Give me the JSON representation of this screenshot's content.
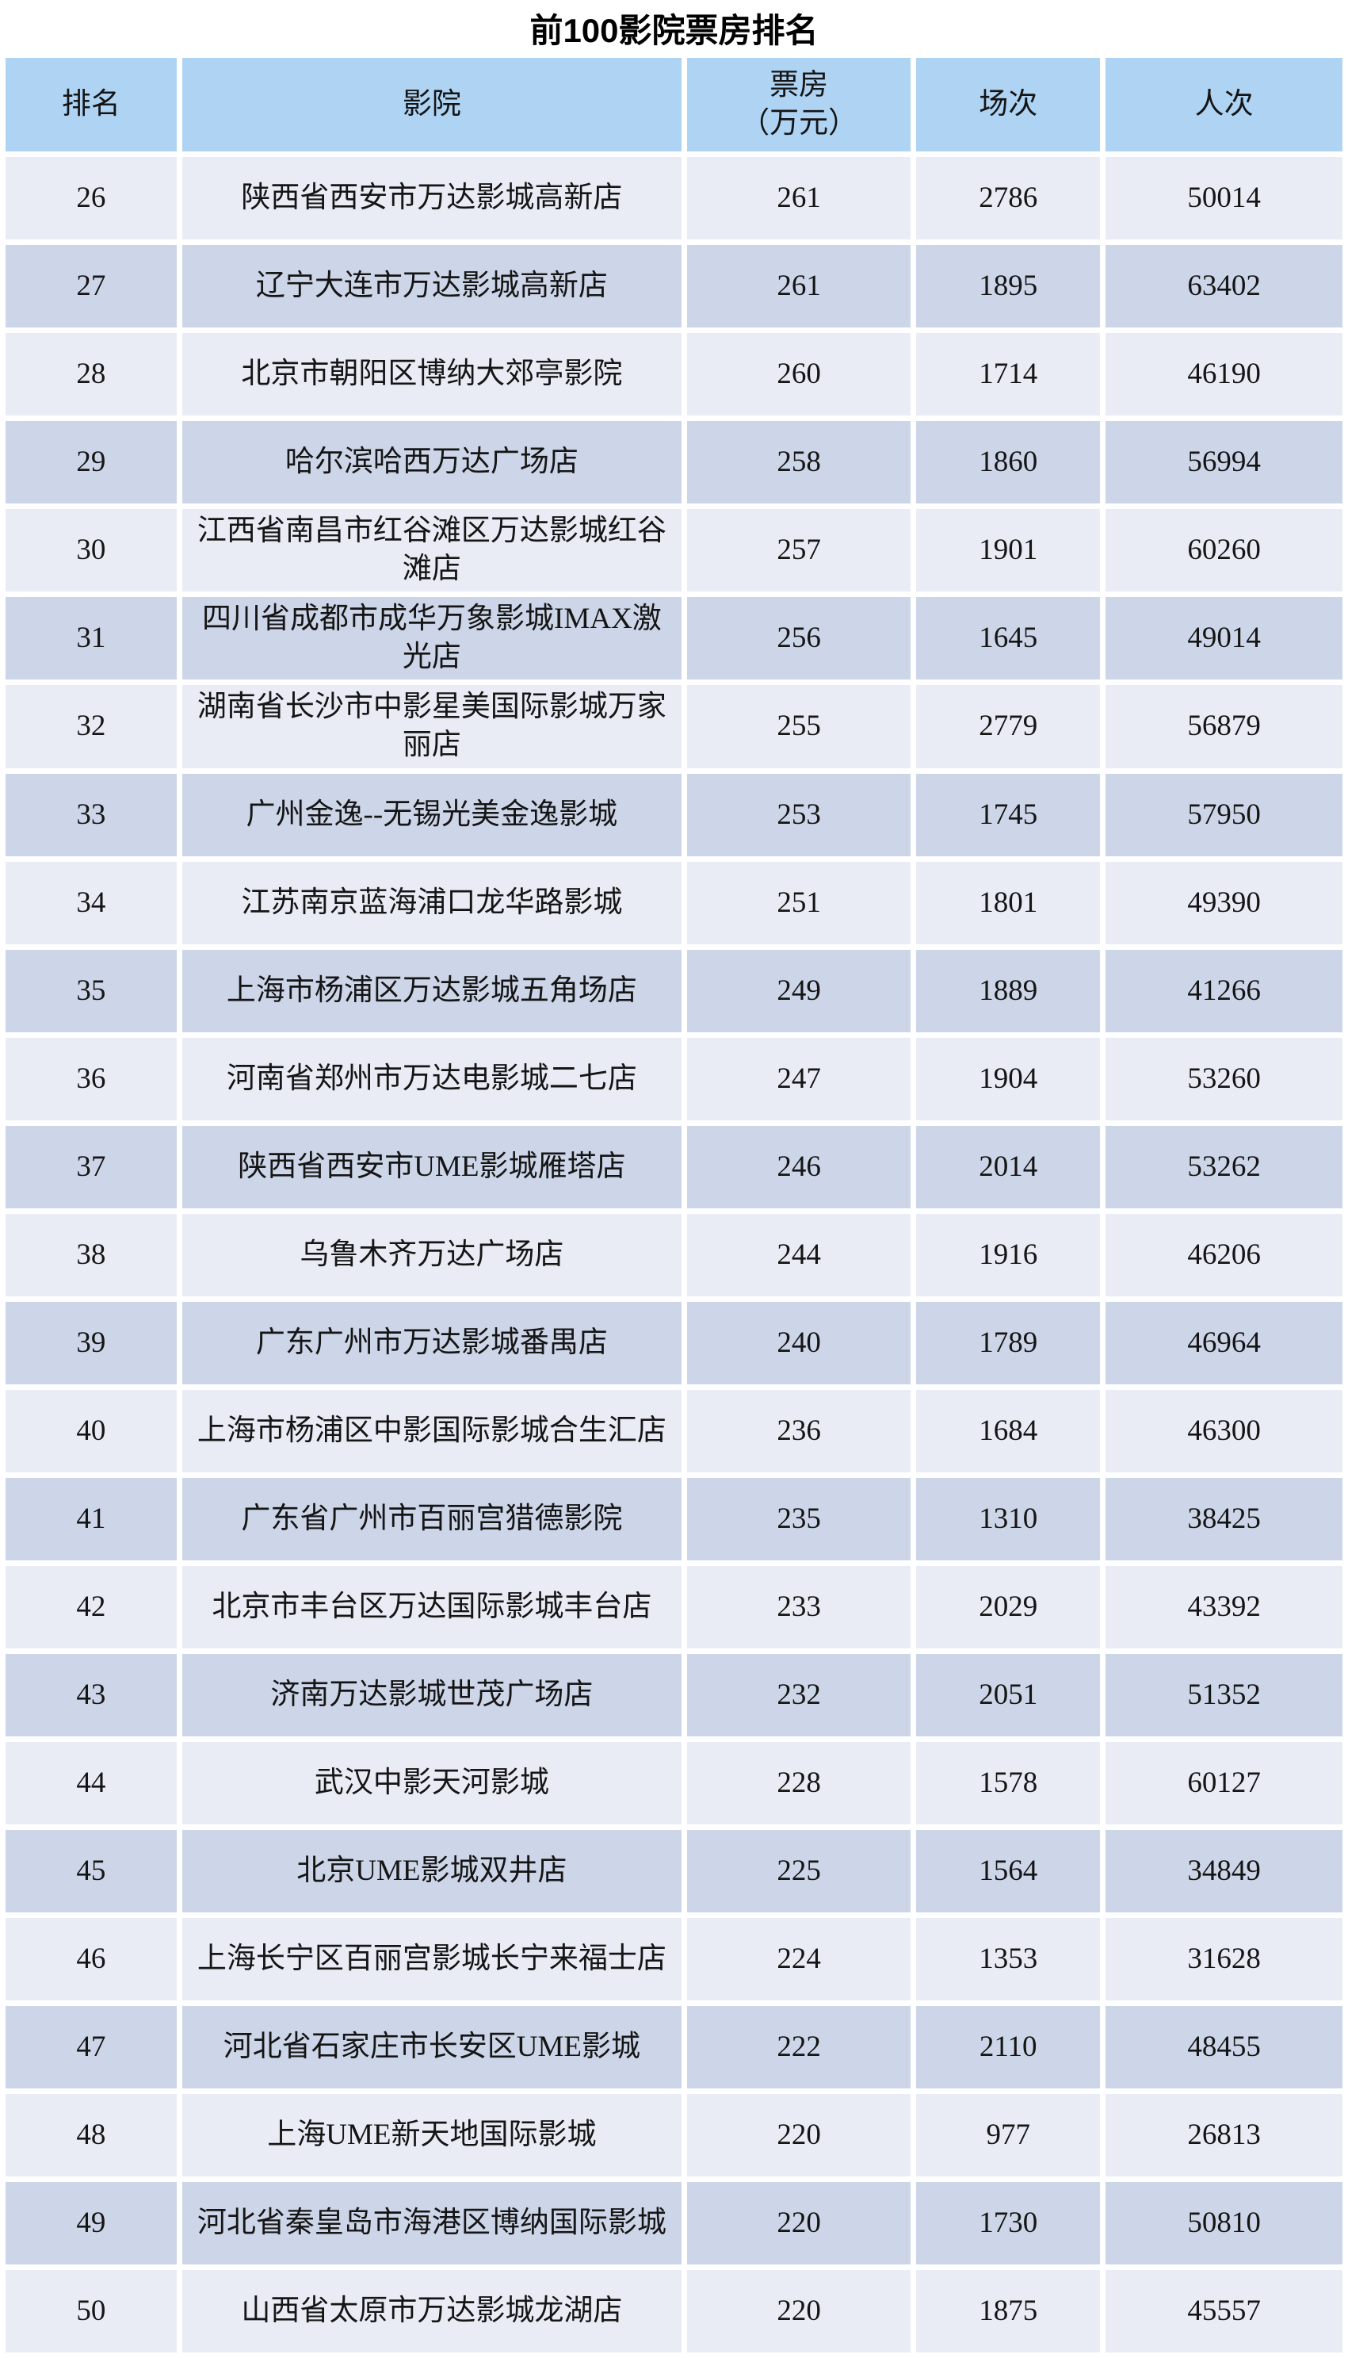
{
  "title": "前100影院票房排名",
  "colors": {
    "header_bg": "#aed3f3",
    "row_light": "#e9ecf5",
    "row_dark": "#cdd5e8",
    "gap": "#ffffff"
  },
  "table": {
    "columns": [
      "排名",
      "影院",
      "票房\n（万元）",
      "场次",
      "人次"
    ],
    "rows": [
      {
        "rank": "26",
        "cinema": "陕西省西安市万达影城高新店",
        "box_office": "261",
        "sessions": "2786",
        "attendance": "50014"
      },
      {
        "rank": "27",
        "cinema": "辽宁大连市万达影城高新店",
        "box_office": "261",
        "sessions": "1895",
        "attendance": "63402"
      },
      {
        "rank": "28",
        "cinema": "北京市朝阳区博纳大郊亭影院",
        "box_office": "260",
        "sessions": "1714",
        "attendance": "46190"
      },
      {
        "rank": "29",
        "cinema": "哈尔滨哈西万达广场店",
        "box_office": "258",
        "sessions": "1860",
        "attendance": "56994"
      },
      {
        "rank": "30",
        "cinema": "江西省南昌市红谷滩区万达影城红谷滩店",
        "box_office": "257",
        "sessions": "1901",
        "attendance": "60260"
      },
      {
        "rank": "31",
        "cinema": "四川省成都市成华万象影城IMAX激光店",
        "box_office": "256",
        "sessions": "1645",
        "attendance": "49014"
      },
      {
        "rank": "32",
        "cinema": "湖南省长沙市中影星美国际影城万家丽店",
        "box_office": "255",
        "sessions": "2779",
        "attendance": "56879"
      },
      {
        "rank": "33",
        "cinema": "广州金逸--无锡光美金逸影城",
        "box_office": "253",
        "sessions": "1745",
        "attendance": "57950"
      },
      {
        "rank": "34",
        "cinema": "江苏南京蓝海浦口龙华路影城",
        "box_office": "251",
        "sessions": "1801",
        "attendance": "49390"
      },
      {
        "rank": "35",
        "cinema": "上海市杨浦区万达影城五角场店",
        "box_office": "249",
        "sessions": "1889",
        "attendance": "41266"
      },
      {
        "rank": "36",
        "cinema": "河南省郑州市万达电影城二七店",
        "box_office": "247",
        "sessions": "1904",
        "attendance": "53260"
      },
      {
        "rank": "37",
        "cinema": "陕西省西安市UME影城雁塔店",
        "box_office": "246",
        "sessions": "2014",
        "attendance": "53262"
      },
      {
        "rank": "38",
        "cinema": "乌鲁木齐万达广场店",
        "box_office": "244",
        "sessions": "1916",
        "attendance": "46206"
      },
      {
        "rank": "39",
        "cinema": "广东广州市万达影城番禺店",
        "box_office": "240",
        "sessions": "1789",
        "attendance": "46964"
      },
      {
        "rank": "40",
        "cinema": "上海市杨浦区中影国际影城合生汇店",
        "box_office": "236",
        "sessions": "1684",
        "attendance": "46300"
      },
      {
        "rank": "41",
        "cinema": "广东省广州市百丽宫猎德影院",
        "box_office": "235",
        "sessions": "1310",
        "attendance": "38425"
      },
      {
        "rank": "42",
        "cinema": "北京市丰台区万达国际影城丰台店",
        "box_office": "233",
        "sessions": "2029",
        "attendance": "43392"
      },
      {
        "rank": "43",
        "cinema": "济南万达影城世茂广场店",
        "box_office": "232",
        "sessions": "2051",
        "attendance": "51352"
      },
      {
        "rank": "44",
        "cinema": "武汉中影天河影城",
        "box_office": "228",
        "sessions": "1578",
        "attendance": "60127"
      },
      {
        "rank": "45",
        "cinema": "北京UME影城双井店",
        "box_office": "225",
        "sessions": "1564",
        "attendance": "34849"
      },
      {
        "rank": "46",
        "cinema": "上海长宁区百丽宫影城长宁来福士店",
        "box_office": "224",
        "sessions": "1353",
        "attendance": "31628"
      },
      {
        "rank": "47",
        "cinema": "河北省石家庄市长安区UME影城",
        "box_office": "222",
        "sessions": "2110",
        "attendance": "48455"
      },
      {
        "rank": "48",
        "cinema": "上海UME新天地国际影城",
        "box_office": "220",
        "sessions": "977",
        "attendance": "26813"
      },
      {
        "rank": "49",
        "cinema": "河北省秦皇岛市海港区博纳国际影城",
        "box_office": "220",
        "sessions": "1730",
        "attendance": "50810"
      },
      {
        "rank": "50",
        "cinema": "山西省太原市万达影城龙湖店",
        "box_office": "220",
        "sessions": "1875",
        "attendance": "45557"
      }
    ]
  }
}
